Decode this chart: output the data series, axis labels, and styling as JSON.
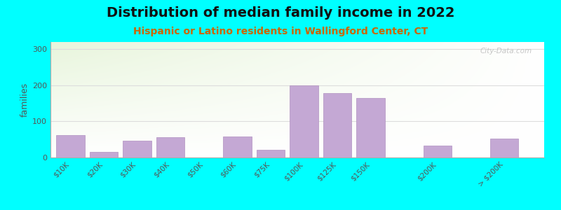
{
  "title": "Distribution of median family income in 2022",
  "subtitle": "Hispanic or Latino residents in Wallingford Center, CT",
  "title_fontsize": 14,
  "subtitle_fontsize": 10,
  "ylabel": "families",
  "background_outer": "#00FFFF",
  "bar_color": "#C4A8D4",
  "bar_edge_color": "#B090C0",
  "ylim": [
    0,
    320
  ],
  "yticks": [
    0,
    100,
    200,
    300
  ],
  "categories": [
    "$10K",
    "$20K",
    "$30K",
    "$40K",
    "$50K",
    "$60K",
    "$75K",
    "$100K",
    "$125K",
    "$150K",
    "$200K",
    "> $200K"
  ],
  "values": [
    63,
    15,
    47,
    57,
    0,
    58,
    22,
    200,
    178,
    165,
    33,
    52
  ],
  "x_positions": [
    0,
    1,
    2,
    3,
    4,
    5,
    6,
    7,
    8,
    9,
    11,
    13
  ],
  "bar_width": 0.85,
  "watermark": "City-Data.com",
  "plot_bg_green": "#E8F5DC",
  "plot_bg_white": "#FFFFFF",
  "grid_color": "#DDDDDD",
  "spine_color": "#AAAAAA",
  "tick_color": "#555555",
  "ylabel_color": "#555555",
  "title_color": "#111111",
  "subtitle_color": "#CC6600",
  "watermark_color": "#C0C0C0"
}
